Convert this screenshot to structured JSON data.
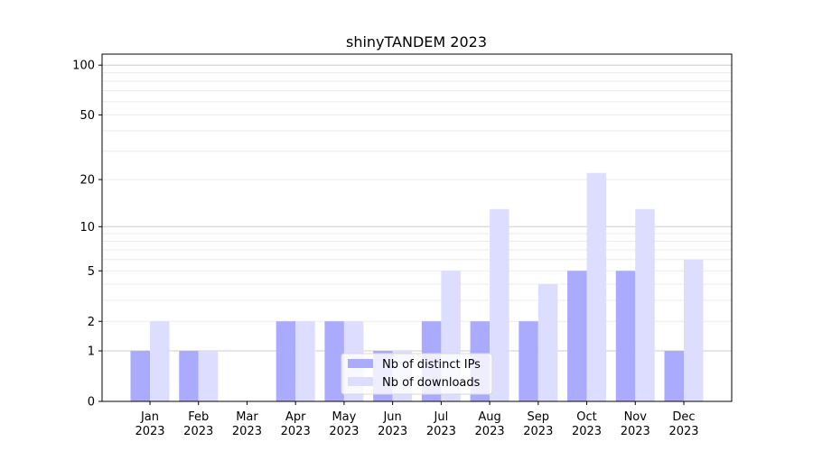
{
  "chart_data": {
    "type": "bar",
    "title": "shinyTANDEM 2023",
    "xlabel": "",
    "ylabel": "",
    "yscale": "log(1+y)",
    "ylim": [
      0,
      117
    ],
    "yticks": [
      0,
      1,
      2,
      5,
      10,
      20,
      50,
      100
    ],
    "grid": true,
    "legend_position": "lower center",
    "categories": [
      "Jan\n2023",
      "Feb\n2023",
      "Mar\n2023",
      "Apr\n2023",
      "May\n2023",
      "Jun\n2023",
      "Jul\n2023",
      "Aug\n2023",
      "Sep\n2023",
      "Oct\n2023",
      "Nov\n2023",
      "Dec\n2023"
    ],
    "series": [
      {
        "name": "Nb of distinct IPs",
        "color": "#aaaaff",
        "values": [
          1,
          1,
          0,
          2,
          2,
          1,
          2,
          2,
          2,
          5,
          5,
          1
        ]
      },
      {
        "name": "Nb of downloads",
        "color": "#ddddff",
        "values": [
          2,
          1,
          0,
          2,
          2,
          1,
          5,
          13,
          4,
          22,
          13,
          6
        ]
      }
    ]
  }
}
